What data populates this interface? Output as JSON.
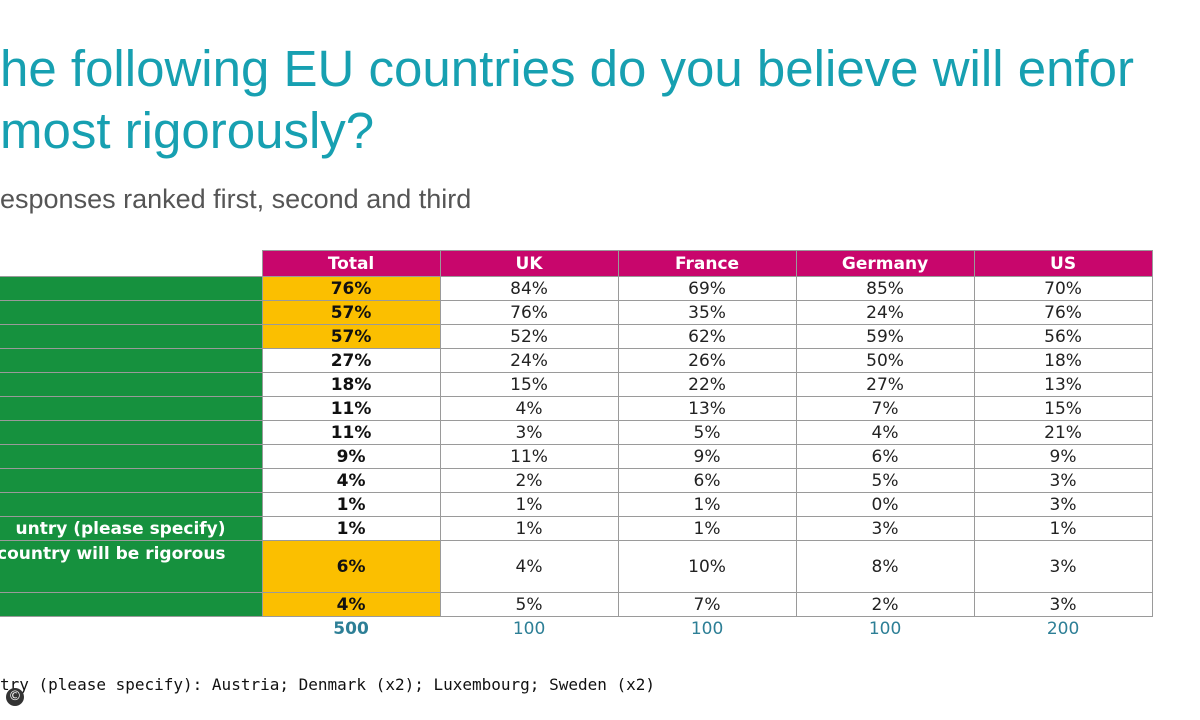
{
  "chart_data": {
    "type": "table",
    "title": "he following EU countries do you believe will enfor most rigorously?",
    "title_lines": [
      "he following EU countries do you believe will enfor",
      "most rigorously?"
    ],
    "subtitle": "esponses ranked first, second and third",
    "columns": [
      "Total",
      "UK",
      "France",
      "Germany",
      "US"
    ],
    "rows": [
      {
        "label": "",
        "values": [
          "76%",
          "84%",
          "69%",
          "85%",
          "70%"
        ]
      },
      {
        "label": "",
        "values": [
          "57%",
          "76%",
          "35%",
          "24%",
          "76%"
        ]
      },
      {
        "label": "",
        "values": [
          "57%",
          "52%",
          "62%",
          "59%",
          "56%"
        ]
      },
      {
        "label": "",
        "values": [
          "27%",
          "24%",
          "26%",
          "50%",
          "18%"
        ]
      },
      {
        "label": "",
        "values": [
          "18%",
          "15%",
          "22%",
          "27%",
          "13%"
        ]
      },
      {
        "label": "",
        "values": [
          "11%",
          "4%",
          "13%",
          "7%",
          "15%"
        ]
      },
      {
        "label": "",
        "values": [
          "11%",
          "3%",
          "5%",
          "4%",
          "21%"
        ]
      },
      {
        "label": "",
        "values": [
          "9%",
          "11%",
          "9%",
          "6%",
          "9%"
        ]
      },
      {
        "label": "",
        "values": [
          "4%",
          "2%",
          "6%",
          "5%",
          "3%"
        ]
      },
      {
        "label": "",
        "values": [
          "1%",
          "1%",
          "1%",
          "0%",
          "3%"
        ]
      },
      {
        "label": "untry (please specify)",
        "values": [
          "1%",
          "1%",
          "1%",
          "3%",
          "1%"
        ]
      },
      {
        "label": "country will be rigorous",
        "values": [
          "6%",
          "4%",
          "10%",
          "8%",
          "3%"
        ]
      },
      {
        "label": "",
        "values": [
          "4%",
          "5%",
          "7%",
          "2%",
          "3%"
        ]
      }
    ],
    "highlighted_total_rows": [
      0,
      1,
      2,
      11,
      12
    ],
    "base": [
      "500",
      "100",
      "100",
      "100",
      "200"
    ],
    "footnote": "try (please specify): Austria; Denmark (x2); Luxembourg; Sweden (x2)"
  },
  "copyright_symbol": "©",
  "colors": {
    "title": "#17a0b1",
    "header_bg": "#c8066c",
    "label_bg": "#16913e",
    "highlight_bg": "#fbbf00",
    "base_text": "#2d7f96"
  }
}
